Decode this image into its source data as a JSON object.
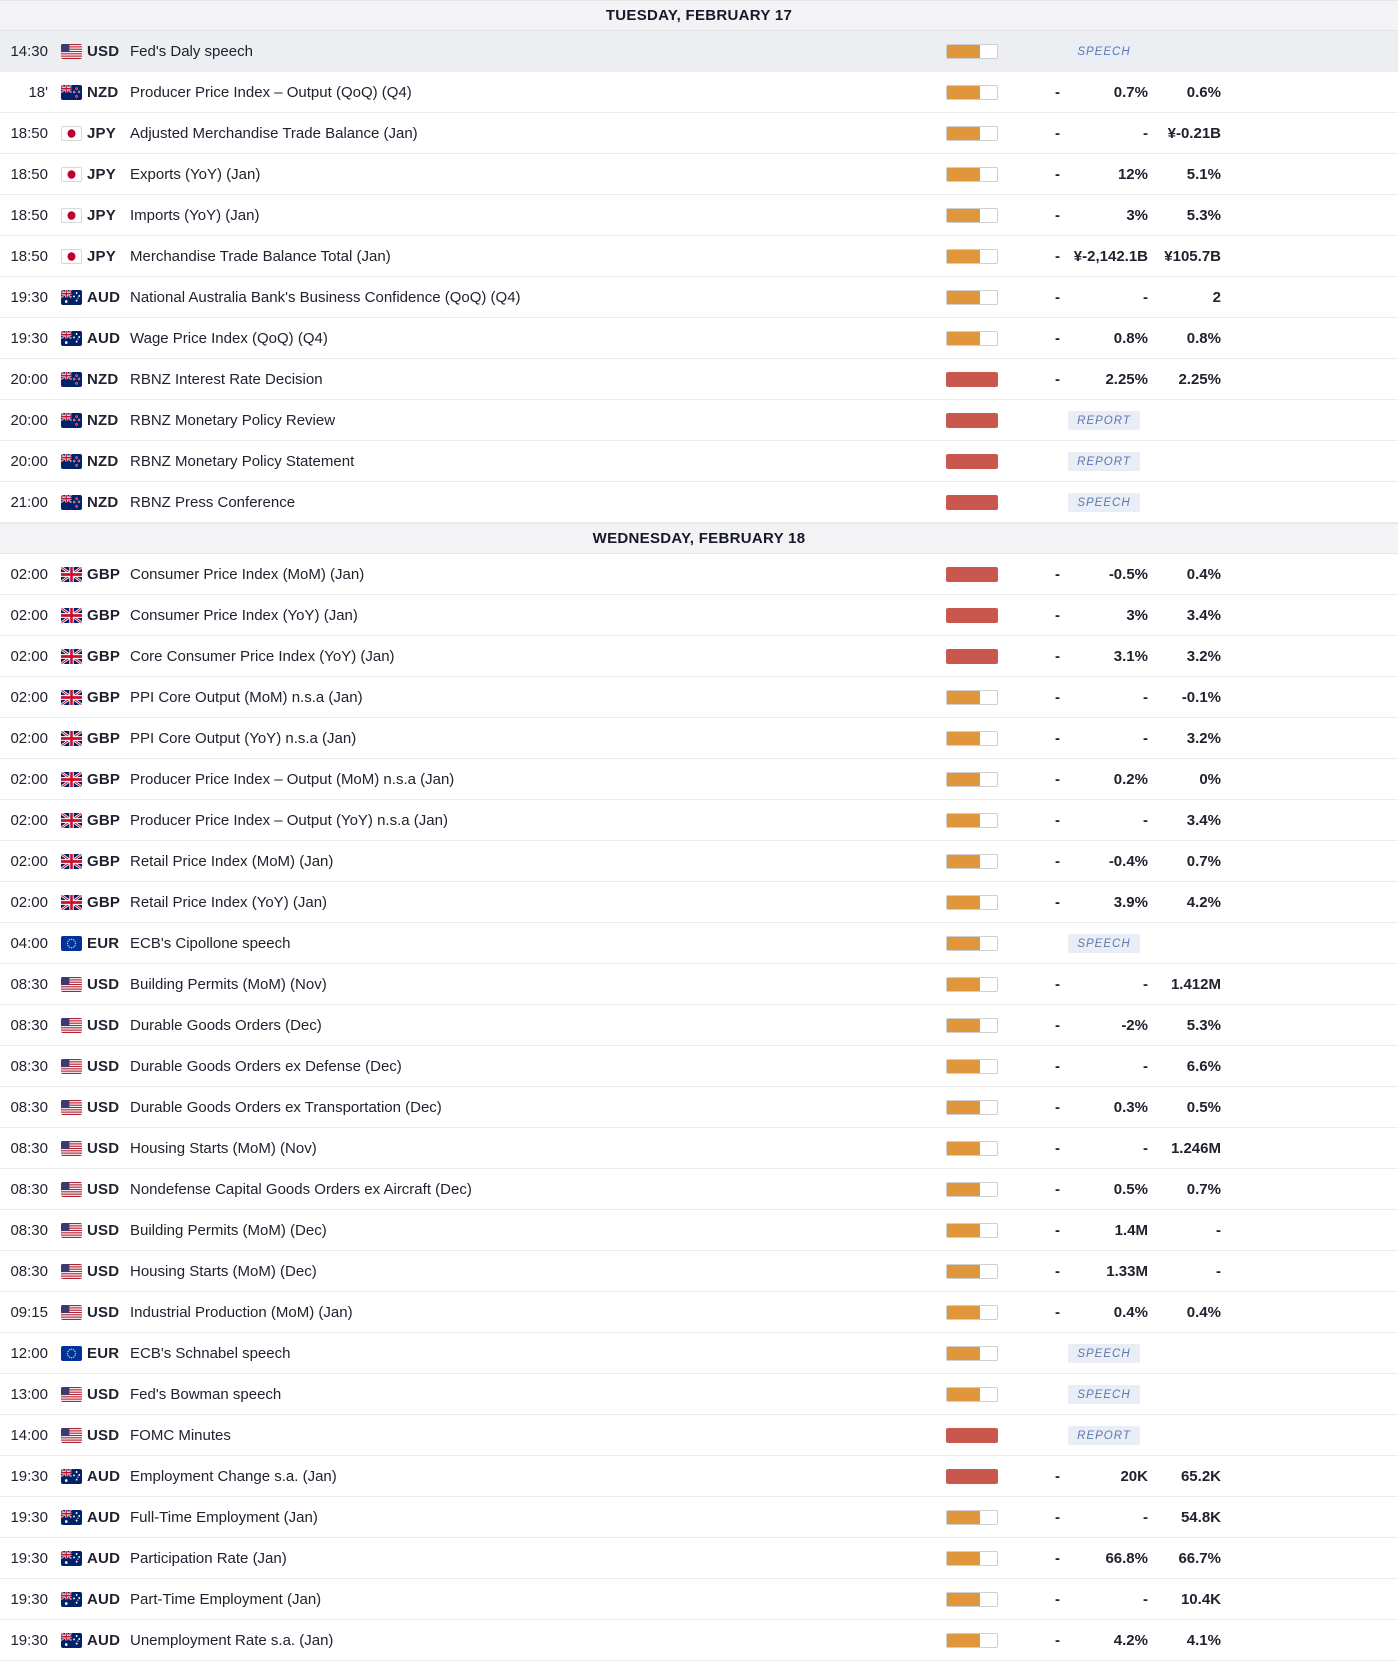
{
  "colors": {
    "impact_medium": "#e0973c",
    "impact_high": "#c9574e",
    "badge_bg": "#e8edf6",
    "badge_text": "#5c7aad",
    "highlight_row_bg": "#eceef2",
    "day_header_bg": "#f3f3f5",
    "row_border": "#ececf0",
    "text": "#20222f"
  },
  "days": [
    {
      "label": "TUESDAY, FEBRUARY 17",
      "events": [
        {
          "time": "14:30",
          "currency": "USD",
          "flag": "us",
          "name": "Fed's Daly speech",
          "impact": "medium",
          "badge": "SPEECH",
          "highlighted": true
        },
        {
          "time": "18'",
          "currency": "NZD",
          "flag": "nz",
          "name": "Producer Price Index – Output (QoQ) (Q4)",
          "impact": "medium",
          "actual": "-",
          "forecast": "0.7%",
          "previous": "0.6%"
        },
        {
          "time": "18:50",
          "currency": "JPY",
          "flag": "jp",
          "name": "Adjusted Merchandise Trade Balance (Jan)",
          "impact": "medium",
          "actual": "-",
          "forecast": "-",
          "previous": "¥-0.21B"
        },
        {
          "time": "18:50",
          "currency": "JPY",
          "flag": "jp",
          "name": "Exports (YoY) (Jan)",
          "impact": "medium",
          "actual": "-",
          "forecast": "12%",
          "previous": "5.1%"
        },
        {
          "time": "18:50",
          "currency": "JPY",
          "flag": "jp",
          "name": "Imports (YoY) (Jan)",
          "impact": "medium",
          "actual": "-",
          "forecast": "3%",
          "previous": "5.3%"
        },
        {
          "time": "18:50",
          "currency": "JPY",
          "flag": "jp",
          "name": "Merchandise Trade Balance Total (Jan)",
          "impact": "medium",
          "actual": "-",
          "forecast": "¥-2,142.1B",
          "previous": "¥105.7B"
        },
        {
          "time": "19:30",
          "currency": "AUD",
          "flag": "au",
          "name": "National Australia Bank's Business Confidence (QoQ) (Q4)",
          "impact": "medium",
          "actual": "-",
          "forecast": "-",
          "previous": "2"
        },
        {
          "time": "19:30",
          "currency": "AUD",
          "flag": "au",
          "name": "Wage Price Index (QoQ) (Q4)",
          "impact": "medium",
          "actual": "-",
          "forecast": "0.8%",
          "previous": "0.8%"
        },
        {
          "time": "20:00",
          "currency": "NZD",
          "flag": "nz",
          "name": "RBNZ Interest Rate Decision",
          "impact": "high",
          "actual": "-",
          "forecast": "2.25%",
          "previous": "2.25%"
        },
        {
          "time": "20:00",
          "currency": "NZD",
          "flag": "nz",
          "name": "RBNZ Monetary Policy Review",
          "impact": "high",
          "badge": "REPORT"
        },
        {
          "time": "20:00",
          "currency": "NZD",
          "flag": "nz",
          "name": "RBNZ Monetary Policy Statement",
          "impact": "high",
          "badge": "REPORT"
        },
        {
          "time": "21:00",
          "currency": "NZD",
          "flag": "nz",
          "name": "RBNZ Press Conference",
          "impact": "high",
          "badge": "SPEECH"
        }
      ]
    },
    {
      "label": "WEDNESDAY, FEBRUARY 18",
      "events": [
        {
          "time": "02:00",
          "currency": "GBP",
          "flag": "gb",
          "name": "Consumer Price Index (MoM) (Jan)",
          "impact": "high",
          "actual": "-",
          "forecast": "-0.5%",
          "previous": "0.4%"
        },
        {
          "time": "02:00",
          "currency": "GBP",
          "flag": "gb",
          "name": "Consumer Price Index (YoY) (Jan)",
          "impact": "high",
          "actual": "-",
          "forecast": "3%",
          "previous": "3.4%"
        },
        {
          "time": "02:00",
          "currency": "GBP",
          "flag": "gb",
          "name": "Core Consumer Price Index (YoY) (Jan)",
          "impact": "high",
          "actual": "-",
          "forecast": "3.1%",
          "previous": "3.2%"
        },
        {
          "time": "02:00",
          "currency": "GBP",
          "flag": "gb",
          "name": "PPI Core Output (MoM) n.s.a (Jan)",
          "impact": "medium",
          "actual": "-",
          "forecast": "-",
          "previous": "-0.1%"
        },
        {
          "time": "02:00",
          "currency": "GBP",
          "flag": "gb",
          "name": "PPI Core Output (YoY) n.s.a (Jan)",
          "impact": "medium",
          "actual": "-",
          "forecast": "-",
          "previous": "3.2%"
        },
        {
          "time": "02:00",
          "currency": "GBP",
          "flag": "gb",
          "name": "Producer Price Index – Output (MoM) n.s.a (Jan)",
          "impact": "medium",
          "actual": "-",
          "forecast": "0.2%",
          "previous": "0%"
        },
        {
          "time": "02:00",
          "currency": "GBP",
          "flag": "gb",
          "name": "Producer Price Index – Output (YoY) n.s.a (Jan)",
          "impact": "medium",
          "actual": "-",
          "forecast": "-",
          "previous": "3.4%"
        },
        {
          "time": "02:00",
          "currency": "GBP",
          "flag": "gb",
          "name": "Retail Price Index (MoM) (Jan)",
          "impact": "medium",
          "actual": "-",
          "forecast": "-0.4%",
          "previous": "0.7%"
        },
        {
          "time": "02:00",
          "currency": "GBP",
          "flag": "gb",
          "name": "Retail Price Index (YoY) (Jan)",
          "impact": "medium",
          "actual": "-",
          "forecast": "3.9%",
          "previous": "4.2%"
        },
        {
          "time": "04:00",
          "currency": "EUR",
          "flag": "eu",
          "name": "ECB's Cipollone speech",
          "impact": "medium",
          "badge": "SPEECH"
        },
        {
          "time": "08:30",
          "currency": "USD",
          "flag": "us",
          "name": "Building Permits (MoM) (Nov)",
          "impact": "medium",
          "actual": "-",
          "forecast": "-",
          "previous": "1.412M"
        },
        {
          "time": "08:30",
          "currency": "USD",
          "flag": "us",
          "name": "Durable Goods Orders (Dec)",
          "impact": "medium",
          "actual": "-",
          "forecast": "-2%",
          "previous": "5.3%"
        },
        {
          "time": "08:30",
          "currency": "USD",
          "flag": "us",
          "name": "Durable Goods Orders ex Defense (Dec)",
          "impact": "medium",
          "actual": "-",
          "forecast": "-",
          "previous": "6.6%"
        },
        {
          "time": "08:30",
          "currency": "USD",
          "flag": "us",
          "name": "Durable Goods Orders ex Transportation (Dec)",
          "impact": "medium",
          "actual": "-",
          "forecast": "0.3%",
          "previous": "0.5%"
        },
        {
          "time": "08:30",
          "currency": "USD",
          "flag": "us",
          "name": "Housing Starts (MoM) (Nov)",
          "impact": "medium",
          "actual": "-",
          "forecast": "-",
          "previous": "1.246M"
        },
        {
          "time": "08:30",
          "currency": "USD",
          "flag": "us",
          "name": "Nondefense Capital Goods Orders ex Aircraft (Dec)",
          "impact": "medium",
          "actual": "-",
          "forecast": "0.5%",
          "previous": "0.7%"
        },
        {
          "time": "08:30",
          "currency": "USD",
          "flag": "us",
          "name": "Building Permits (MoM) (Dec)",
          "impact": "medium",
          "actual": "-",
          "forecast": "1.4M",
          "previous": "-"
        },
        {
          "time": "08:30",
          "currency": "USD",
          "flag": "us",
          "name": "Housing Starts (MoM) (Dec)",
          "impact": "medium",
          "actual": "-",
          "forecast": "1.33M",
          "previous": "-"
        },
        {
          "time": "09:15",
          "currency": "USD",
          "flag": "us",
          "name": "Industrial Production (MoM) (Jan)",
          "impact": "medium",
          "actual": "-",
          "forecast": "0.4%",
          "previous": "0.4%"
        },
        {
          "time": "12:00",
          "currency": "EUR",
          "flag": "eu",
          "name": "ECB's Schnabel speech",
          "impact": "medium",
          "badge": "SPEECH"
        },
        {
          "time": "13:00",
          "currency": "USD",
          "flag": "us",
          "name": "Fed's Bowman speech",
          "impact": "medium",
          "badge": "SPEECH"
        },
        {
          "time": "14:00",
          "currency": "USD",
          "flag": "us",
          "name": "FOMC Minutes",
          "impact": "high",
          "badge": "REPORT"
        },
        {
          "time": "19:30",
          "currency": "AUD",
          "flag": "au",
          "name": "Employment Change s.a. (Jan)",
          "impact": "high",
          "actual": "-",
          "forecast": "20K",
          "previous": "65.2K"
        },
        {
          "time": "19:30",
          "currency": "AUD",
          "flag": "au",
          "name": "Full-Time Employment (Jan)",
          "impact": "medium",
          "actual": "-",
          "forecast": "-",
          "previous": "54.8K"
        },
        {
          "time": "19:30",
          "currency": "AUD",
          "flag": "au",
          "name": "Participation Rate (Jan)",
          "impact": "medium",
          "actual": "-",
          "forecast": "66.8%",
          "previous": "66.7%"
        },
        {
          "time": "19:30",
          "currency": "AUD",
          "flag": "au",
          "name": "Part-Time Employment (Jan)",
          "impact": "medium",
          "actual": "-",
          "forecast": "-",
          "previous": "10.4K"
        },
        {
          "time": "19:30",
          "currency": "AUD",
          "flag": "au",
          "name": "Unemployment Rate s.a. (Jan)",
          "impact": "medium",
          "actual": "-",
          "forecast": "4.2%",
          "previous": "4.1%"
        }
      ]
    }
  ]
}
